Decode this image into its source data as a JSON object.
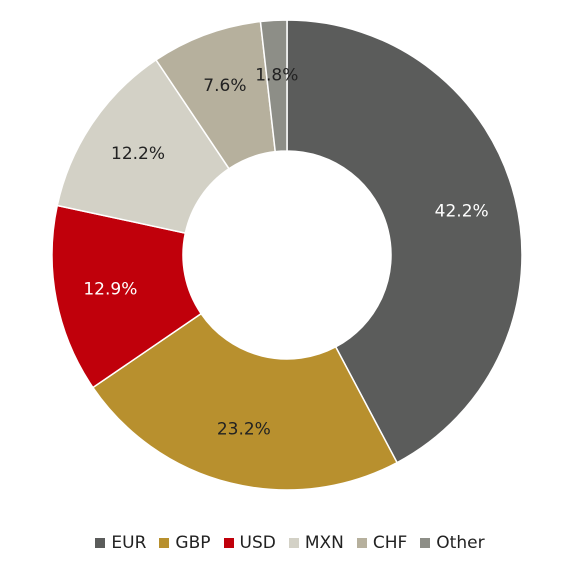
{
  "chart_data": {
    "type": "pie",
    "style": "donut",
    "slices": [
      {
        "label": "EUR",
        "value": 42.2,
        "display": "42.2%",
        "color": "#5b5c5b",
        "label_color": "#ffffff"
      },
      {
        "label": "GBP",
        "value": 23.2,
        "display": "23.2%",
        "color": "#b8902e",
        "label_color": "#222222"
      },
      {
        "label": "USD",
        "value": 12.9,
        "display": "12.9%",
        "color": "#c0000b",
        "label_color": "#ffffff"
      },
      {
        "label": "MXN",
        "value": 12.2,
        "display": "12.2%",
        "color": "#d3d1c6",
        "label_color": "#222222"
      },
      {
        "label": "CHF",
        "value": 7.6,
        "display": "7.6%",
        "color": "#b6b09d",
        "label_color": "#222222"
      },
      {
        "label": "Other",
        "value": 1.8,
        "display": "1.8%",
        "color": "#8d8e87",
        "label_color": "#222222"
      }
    ],
    "legend_position": "bottom",
    "start": "top",
    "direction": "clockwise"
  }
}
